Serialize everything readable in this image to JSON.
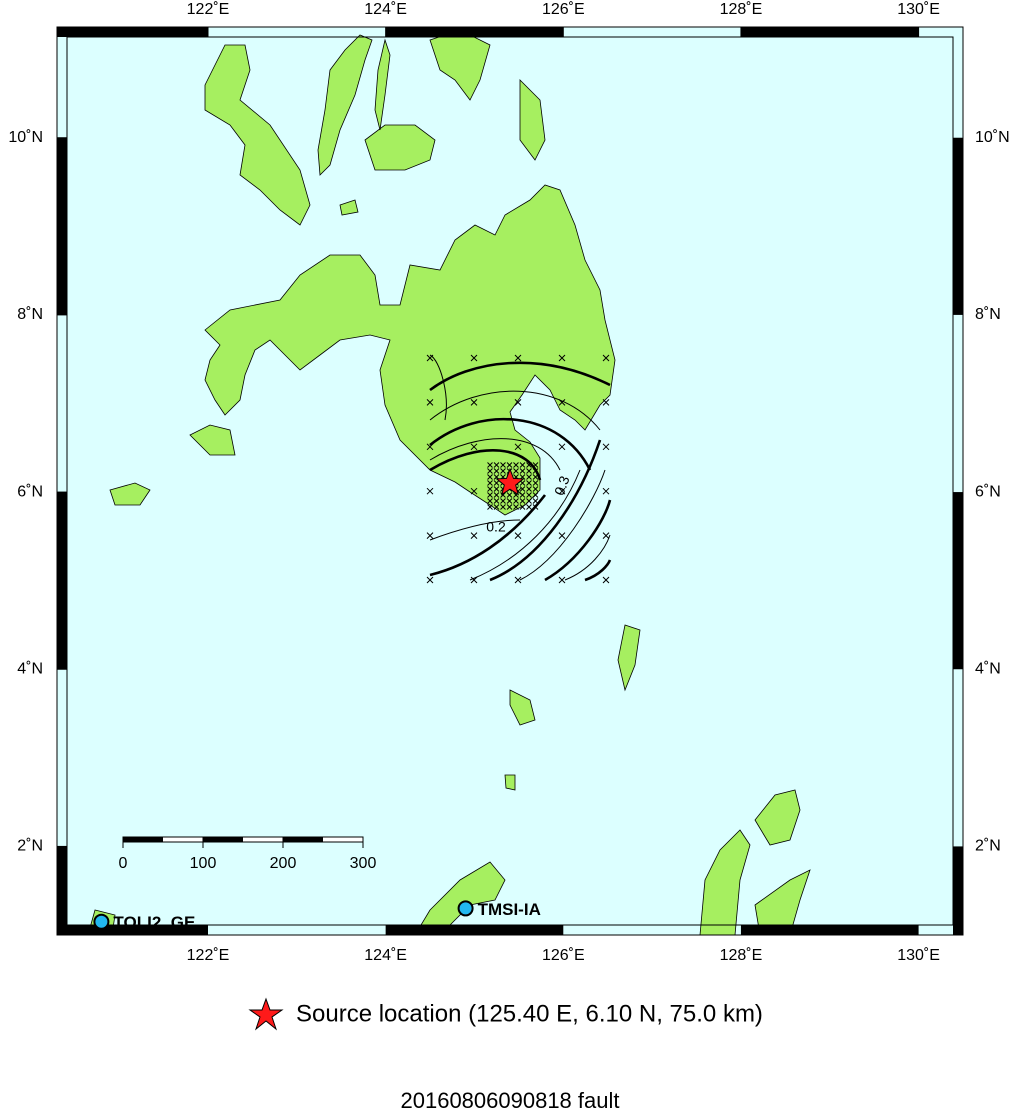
{
  "map": {
    "xlim": [
      120.3,
      130.5
    ],
    "ylim": [
      1,
      11.25
    ],
    "xticks": [
      {
        "value": 122,
        "label": "122˚E"
      },
      {
        "value": 124,
        "label": "124˚E"
      },
      {
        "value": 126,
        "label": "126˚E"
      },
      {
        "value": 128,
        "label": "128˚E"
      },
      {
        "value": 130,
        "label": "130˚E"
      }
    ],
    "yticks": [
      {
        "value": 2,
        "label": "2˚N"
      },
      {
        "value": 4,
        "label": "4˚N"
      },
      {
        "value": 6,
        "label": "6˚N"
      },
      {
        "value": 8,
        "label": "8˚N"
      },
      {
        "value": 10,
        "label": "10˚N"
      }
    ],
    "contour_labels": [
      "0.2",
      "0.3"
    ],
    "stations": [
      {
        "name": "TMSI-IA",
        "lon": 124.9,
        "lat": 1.3
      },
      {
        "name": "TOLI2_GE",
        "lon": 120.8,
        "lat": 1.15
      }
    ],
    "scale_bar": {
      "ticks": [
        0,
        100,
        200,
        300
      ]
    },
    "source": {
      "lon": 125.4,
      "lat": 6.1,
      "label": "Source location (125.40 E, 6.10 N, 75.0 km)"
    },
    "title": "20160806090818 fault"
  }
}
